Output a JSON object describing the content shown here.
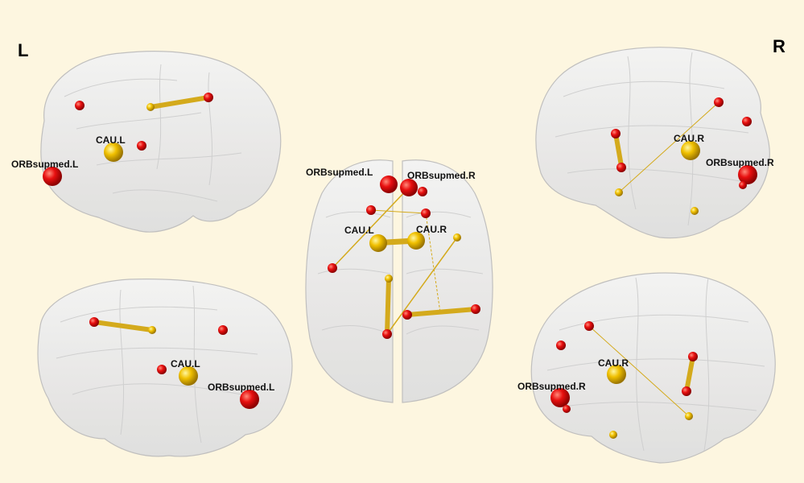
{
  "hemisphere_labels": {
    "left": "L",
    "right": "R"
  },
  "node_labels": {
    "cau_l": "CAU.L",
    "cau_r": "CAU.R",
    "orb_l": "ORBsupmed.L",
    "orb_r": "ORBsupmed.R"
  },
  "colors": {
    "background": "#fdf6e0",
    "brain_fill": "#e9e9e9",
    "brain_stroke": "#bdbdbd",
    "red_node": "#e81010",
    "yellow_node": "#f0c000",
    "edge": "#d4aa1c"
  }
}
